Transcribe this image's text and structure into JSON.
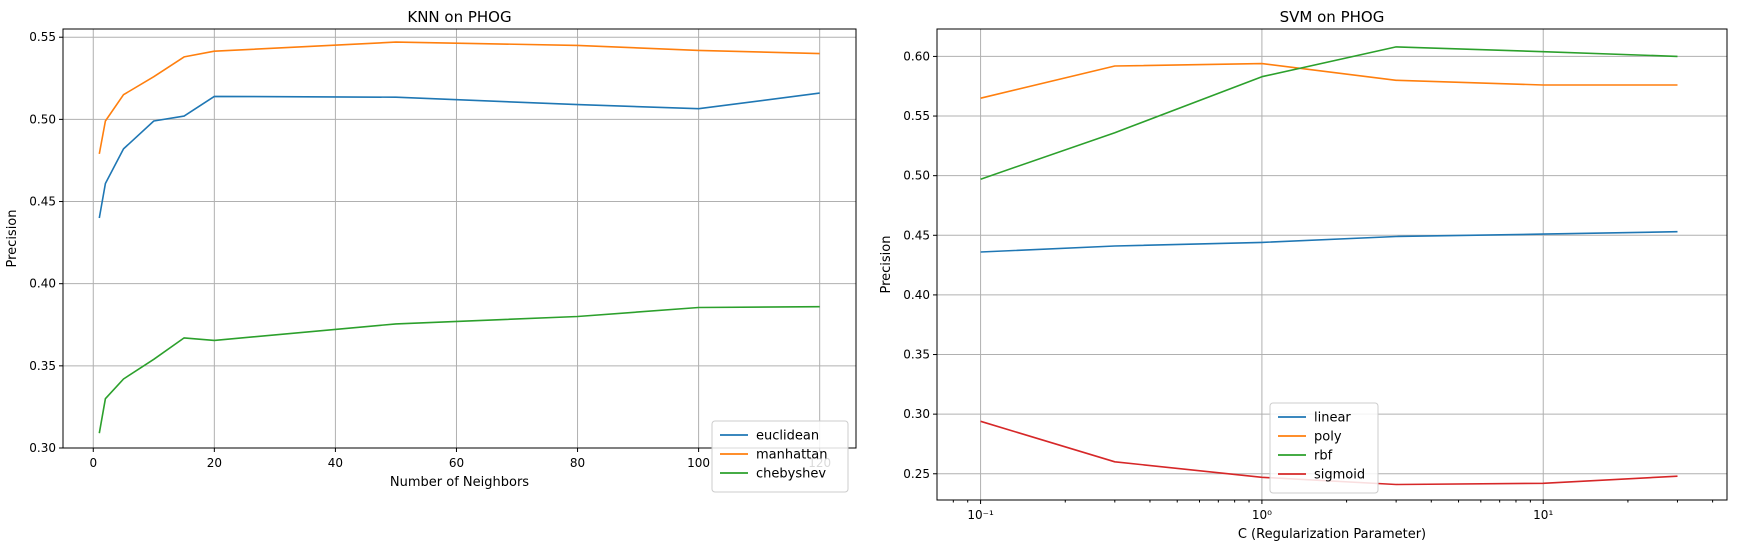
{
  "chart_data": [
    {
      "type": "line",
      "title": "KNN on PHOG",
      "xlabel": "Number of Neighbors",
      "ylabel": "Precision",
      "xscale": "linear",
      "xlim": [
        -5,
        126
      ],
      "ylim": [
        0.3,
        0.555
      ],
      "xticks": [
        0,
        20,
        40,
        60,
        80,
        100,
        120
      ],
      "xtick_labels": [
        "0",
        "20",
        "40",
        "60",
        "80",
        "100",
        "120"
      ],
      "yticks": [
        0.3,
        0.35,
        0.4,
        0.45,
        0.5,
        0.55
      ],
      "ytick_labels": [
        "0.30",
        "0.35",
        "0.40",
        "0.45",
        "0.50",
        "0.55"
      ],
      "grid": true,
      "legend_position": "lower right",
      "x": [
        1,
        2,
        5,
        10,
        15,
        20,
        50,
        80,
        100,
        120
      ],
      "series": [
        {
          "name": "euclidean",
          "color": "#1f77b4",
          "values": [
            0.44,
            0.461,
            0.482,
            0.499,
            0.502,
            0.514,
            0.5135,
            0.509,
            0.5065,
            0.516
          ]
        },
        {
          "name": "manhattan",
          "color": "#ff7f0e",
          "values": [
            0.479,
            0.499,
            0.515,
            0.526,
            0.538,
            0.5415,
            0.547,
            0.545,
            0.542,
            0.54
          ]
        },
        {
          "name": "chebyshev",
          "color": "#2ca02c",
          "values": [
            0.309,
            0.33,
            0.342,
            0.354,
            0.367,
            0.3655,
            0.3755,
            0.38,
            0.3855,
            0.386
          ]
        }
      ]
    },
    {
      "type": "line",
      "title": "SVM on PHOG",
      "xlabel": "C (Regularization Parameter)",
      "ylabel": "Precision",
      "xscale": "log",
      "xlim": [
        0.07,
        45
      ],
      "ylim": [
        0.228,
        0.623
      ],
      "xticks": [
        0.1,
        1,
        10
      ],
      "xtick_labels": [
        "10⁻¹",
        "10⁰",
        "10¹"
      ],
      "yticks": [
        0.25,
        0.3,
        0.35,
        0.4,
        0.45,
        0.5,
        0.55,
        0.6
      ],
      "ytick_labels": [
        "0.25",
        "0.30",
        "0.35",
        "0.40",
        "0.45",
        "0.50",
        "0.55",
        "0.60"
      ],
      "grid": true,
      "legend_position": "lower center",
      "x": [
        0.1,
        0.3,
        1,
        3,
        10,
        30
      ],
      "series": [
        {
          "name": "linear",
          "color": "#1f77b4",
          "values": [
            0.436,
            0.441,
            0.444,
            0.449,
            0.451,
            0.453
          ]
        },
        {
          "name": "poly",
          "color": "#ff7f0e",
          "values": [
            0.565,
            0.592,
            0.594,
            0.58,
            0.576,
            0.576
          ]
        },
        {
          "name": "rbf",
          "color": "#2ca02c",
          "values": [
            0.497,
            0.536,
            0.583,
            0.608,
            0.604,
            0.6
          ]
        },
        {
          "name": "sigmoid",
          "color": "#d62728",
          "values": [
            0.294,
            0.26,
            0.247,
            0.241,
            0.242,
            0.248
          ]
        }
      ]
    }
  ]
}
